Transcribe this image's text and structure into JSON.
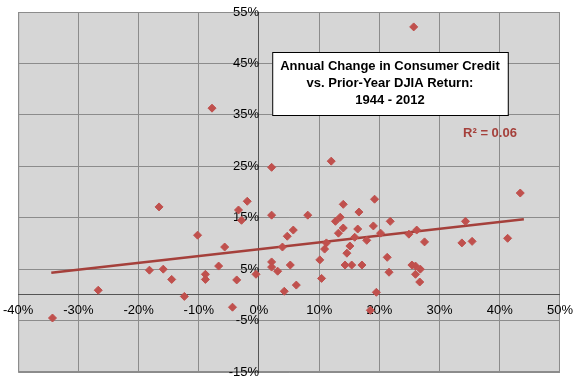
{
  "chart_data": {
    "type": "scatter",
    "title": [
      "Annual Change in Consumer Credit",
      "vs. Prior-Year DJIA Return:",
      "1944 - 2012"
    ],
    "annotations": [
      "R² = 0.06"
    ],
    "x": [
      -34.3,
      -26.7,
      -16.6,
      -18.2,
      -15.9,
      -14.5,
      -12.4,
      -10.2,
      -8.9,
      -8.9,
      -7.8,
      -6.7,
      -5.7,
      -4.4,
      -3.7,
      -3.4,
      -2.9,
      -1.95,
      -0.5,
      2.1,
      2.1,
      2.1,
      2.1,
      3.1,
      3.9,
      4.2,
      4.7,
      5.2,
      5.7,
      6.2,
      8.1,
      10.1,
      10.4,
      10.9,
      11.2,
      12.0,
      12.7,
      13.2,
      13.5,
      14.0,
      14.0,
      14.3,
      14.6,
      15.1,
      15.4,
      15.9,
      16.4,
      16.6,
      17.1,
      17.9,
      18.5,
      19.0,
      19.2,
      19.5,
      20.2,
      21.3,
      21.6,
      21.8,
      24.9,
      25.4,
      26.0,
      26.0,
      26.2,
      25.7,
      26.8,
      26.7,
      27.5,
      33.7,
      34.3,
      35.4,
      41.3,
      43.4
    ],
    "values": [
      -4.5,
      0.9,
      17.1,
      4.8,
      5.0,
      3.0,
      -0.3,
      11.6,
      4.0,
      3.0,
      36.3,
      5.6,
      9.3,
      -2.4,
      2.9,
      16.5,
      14.5,
      18.2,
      4.0,
      24.8,
      15.5,
      6.4,
      5.4,
      4.6,
      9.3,
      0.7,
      11.4,
      5.8,
      12.6,
      1.9,
      15.5,
      6.8,
      3.2,
      8.9,
      10.1,
      26.0,
      14.3,
      12.0,
      15.1,
      17.6,
      13.0,
      5.8,
      8.1,
      9.5,
      5.8,
      11.2,
      12.8,
      16.1,
      5.8,
      10.6,
      -3.0,
      13.4,
      18.6,
      0.5,
      12.0,
      7.3,
      4.4,
      14.3,
      11.8,
      5.8,
      5.6,
      4.0,
      12.6,
      52.1,
      5.0,
      2.5,
      10.3,
      10.1,
      14.3,
      10.4,
      11.0,
      19.8
    ],
    "color": "#c0504d",
    "marker": "diamond",
    "trend_line": {
      "x": [
        -34.5,
        44
      ],
      "values": [
        4.3,
        14.7
      ],
      "color": "#a5403b"
    },
    "xlim": [
      -40,
      50
    ],
    "xticks": [
      {
        "value": -40,
        "label": "-40%"
      },
      {
        "value": -30,
        "label": "-30%"
      },
      {
        "value": -20,
        "label": "-20%"
      },
      {
        "value": -10,
        "label": "-10%"
      },
      {
        "value": 0,
        "label": "0%"
      },
      {
        "value": 10,
        "label": "10%"
      },
      {
        "value": 20,
        "label": "20%"
      },
      {
        "value": 30,
        "label": "30%"
      },
      {
        "value": 40,
        "label": "40%"
      },
      {
        "value": 50,
        "label": "50%"
      }
    ],
    "ylim": [
      -15,
      55
    ],
    "yticks": [
      {
        "value": -15,
        "label": "-15%"
      },
      {
        "value": -5,
        "label": "-5%"
      },
      {
        "value": 5,
        "label": "5%"
      },
      {
        "value": 15,
        "label": "15%"
      },
      {
        "value": 25,
        "label": "25%"
      },
      {
        "value": 35,
        "label": "35%"
      },
      {
        "value": 45,
        "label": "45%"
      },
      {
        "value": 55,
        "label": "55%"
      }
    ],
    "grid": true
  }
}
